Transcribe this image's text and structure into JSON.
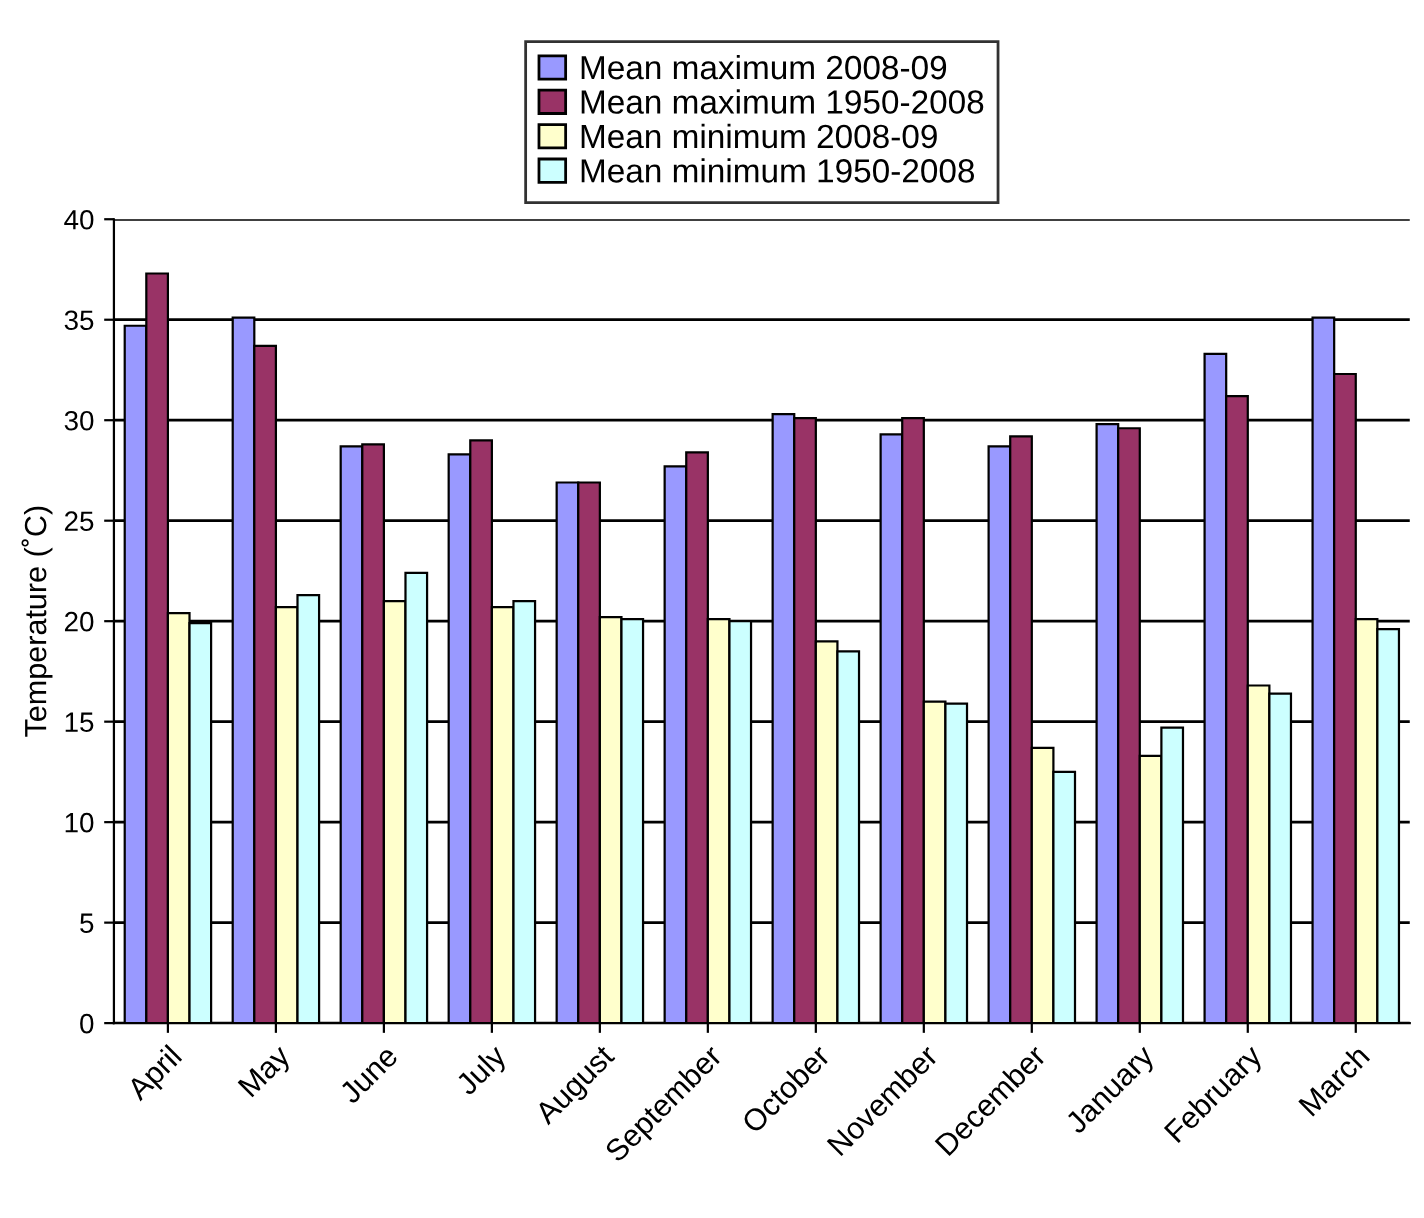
{
  "chart_data": {
    "type": "bar",
    "ylabel": "Temperature (˚C)",
    "categories": [
      "April",
      "May",
      "June",
      "July",
      "August",
      "September",
      "October",
      "November",
      "December",
      "January",
      "February",
      "March"
    ],
    "series": [
      {
        "name": "Mean maximum 2008-09",
        "color": "#9999ff",
        "values": [
          34.7,
          35.1,
          28.7,
          28.3,
          26.9,
          27.7,
          30.3,
          29.3,
          28.7,
          29.8,
          33.3,
          35.1
        ]
      },
      {
        "name": "Mean maximum 1950-2008",
        "color": "#993366",
        "values": [
          37.3,
          33.7,
          28.8,
          29.0,
          26.9,
          28.4,
          30.1,
          30.1,
          29.2,
          29.6,
          31.2,
          32.3
        ]
      },
      {
        "name": "Mean minimum 2008-09",
        "color": "#ffffcc",
        "values": [
          20.4,
          20.7,
          21.0,
          20.7,
          20.2,
          20.1,
          19.0,
          16.0,
          13.7,
          13.3,
          16.8,
          20.1
        ]
      },
      {
        "name": "Mean minimum 1950-2008",
        "color": "#ccffff",
        "values": [
          19.9,
          21.3,
          22.4,
          21.0,
          20.1,
          20.0,
          18.5,
          15.9,
          12.5,
          14.7,
          16.4,
          19.6
        ]
      }
    ],
    "ylim": [
      0,
      40
    ],
    "yticks": [
      0,
      5,
      10,
      15,
      20,
      25,
      30,
      35,
      40
    ],
    "grid": "y",
    "legend": "top"
  }
}
